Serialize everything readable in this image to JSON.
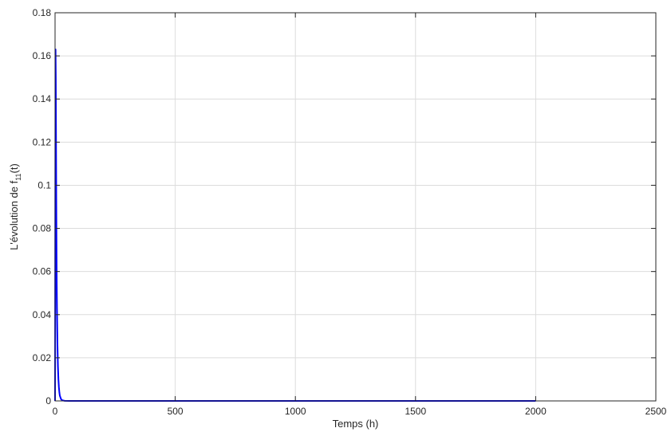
{
  "chart_data": {
    "type": "line",
    "title": "",
    "xlabel": "Temps (h)",
    "ylabel": {
      "prefix": "L'évolution de f",
      "subscript": "11",
      "suffix": "(t)"
    },
    "xlim": [
      0,
      2500
    ],
    "ylim": [
      0,
      0.18
    ],
    "x_ticks": [
      0,
      500,
      1000,
      1500,
      2000,
      2500
    ],
    "x_tick_labels": [
      "0",
      "500",
      "1000",
      "1500",
      "2000",
      "2500"
    ],
    "y_ticks": [
      0,
      0.02,
      0.04,
      0.06,
      0.08,
      0.1,
      0.12,
      0.14,
      0.16,
      0.18
    ],
    "y_tick_labels": [
      "0",
      "0.02",
      "0.04",
      "0.06",
      "0.08",
      "0.1",
      "0.12",
      "0.14",
      "0.16",
      "0.18"
    ],
    "grid": true,
    "series": [
      {
        "color": "#0000ff",
        "x": [
          0,
          2,
          3,
          4,
          5,
          6,
          7,
          8,
          10,
          12,
          14,
          16,
          18,
          20,
          25,
          30,
          40,
          60,
          100,
          500,
          1000,
          1500,
          2000
        ],
        "y": [
          0,
          0.163,
          0.15,
          0.122,
          0.094,
          0.072,
          0.055,
          0.043,
          0.026,
          0.016,
          0.01,
          0.0063,
          0.0039,
          0.0024,
          0.0008,
          0.0003,
          5e-05,
          0,
          0,
          0,
          0,
          0,
          0
        ]
      }
    ]
  }
}
